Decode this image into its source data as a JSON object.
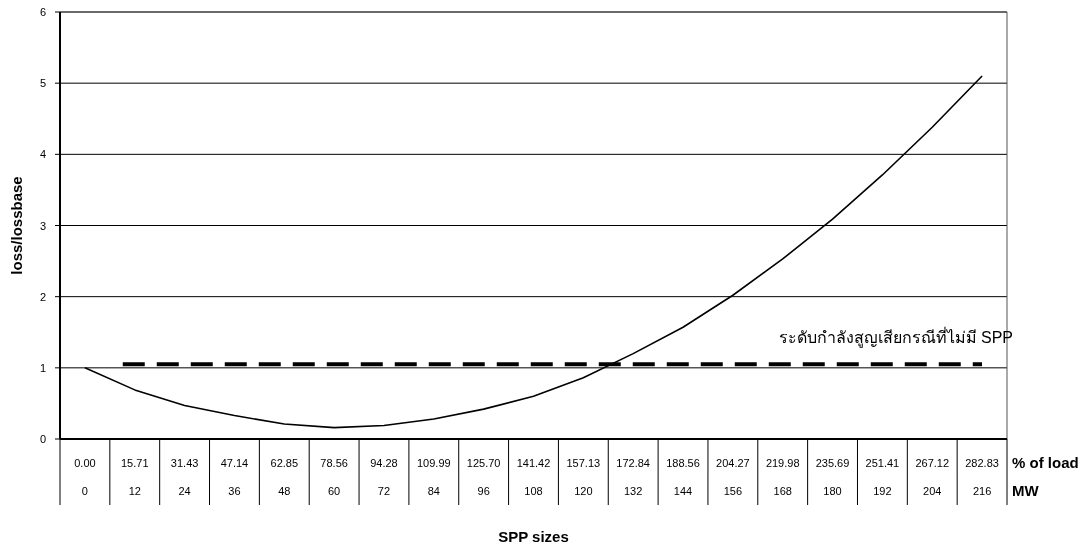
{
  "chart_data": {
    "type": "line",
    "xlabel": "SPP sizes",
    "ylabel": "loss/lossbase",
    "x": [
      0,
      12,
      24,
      36,
      48,
      60,
      72,
      84,
      96,
      108,
      120,
      132,
      144,
      156,
      168,
      180,
      192,
      204,
      216
    ],
    "series": [
      {
        "color": "#000000",
        "values": [
          1.0,
          0.69,
          0.47,
          0.33,
          0.21,
          0.16,
          0.19,
          0.28,
          0.42,
          0.6,
          0.86,
          1.2,
          1.57,
          2.02,
          2.53,
          3.09,
          3.71,
          4.38,
          5.1
        ]
      }
    ],
    "xlim": [
      -6,
      222
    ],
    "xticks": [
      0,
      12,
      24,
      36,
      48,
      60,
      72,
      84,
      96,
      108,
      120,
      132,
      144,
      156,
      168,
      180,
      192,
      204,
      216
    ],
    "x2lim": [
      -7.856,
      290.69
    ],
    "x2ticks": [
      {
        "value": 0,
        "label": "0.00"
      },
      15.71,
      31.43,
      47.14,
      62.85,
      78.56,
      94.28,
      109.99,
      {
        "value": 125.7,
        "label": "125.70"
      },
      141.42,
      157.13,
      172.84,
      188.56,
      204.27,
      219.98,
      235.69,
      251.41,
      267.12,
      282.83
    ],
    "ylim": [
      0,
      6
    ],
    "yticks": [
      0,
      1,
      2,
      3,
      4,
      5,
      6
    ],
    "grid": "y",
    "marker": "none",
    "line_style": "solid",
    "ref_lines": [
      {
        "axis": "y",
        "value": 1.05,
        "label": "ระดับกำลังสูญเสียกรณีที่ไม่มี SPP",
        "color": "#000000",
        "line_style": "dashed"
      }
    ],
    "annotations": [
      "% of load",
      "MW"
    ]
  }
}
